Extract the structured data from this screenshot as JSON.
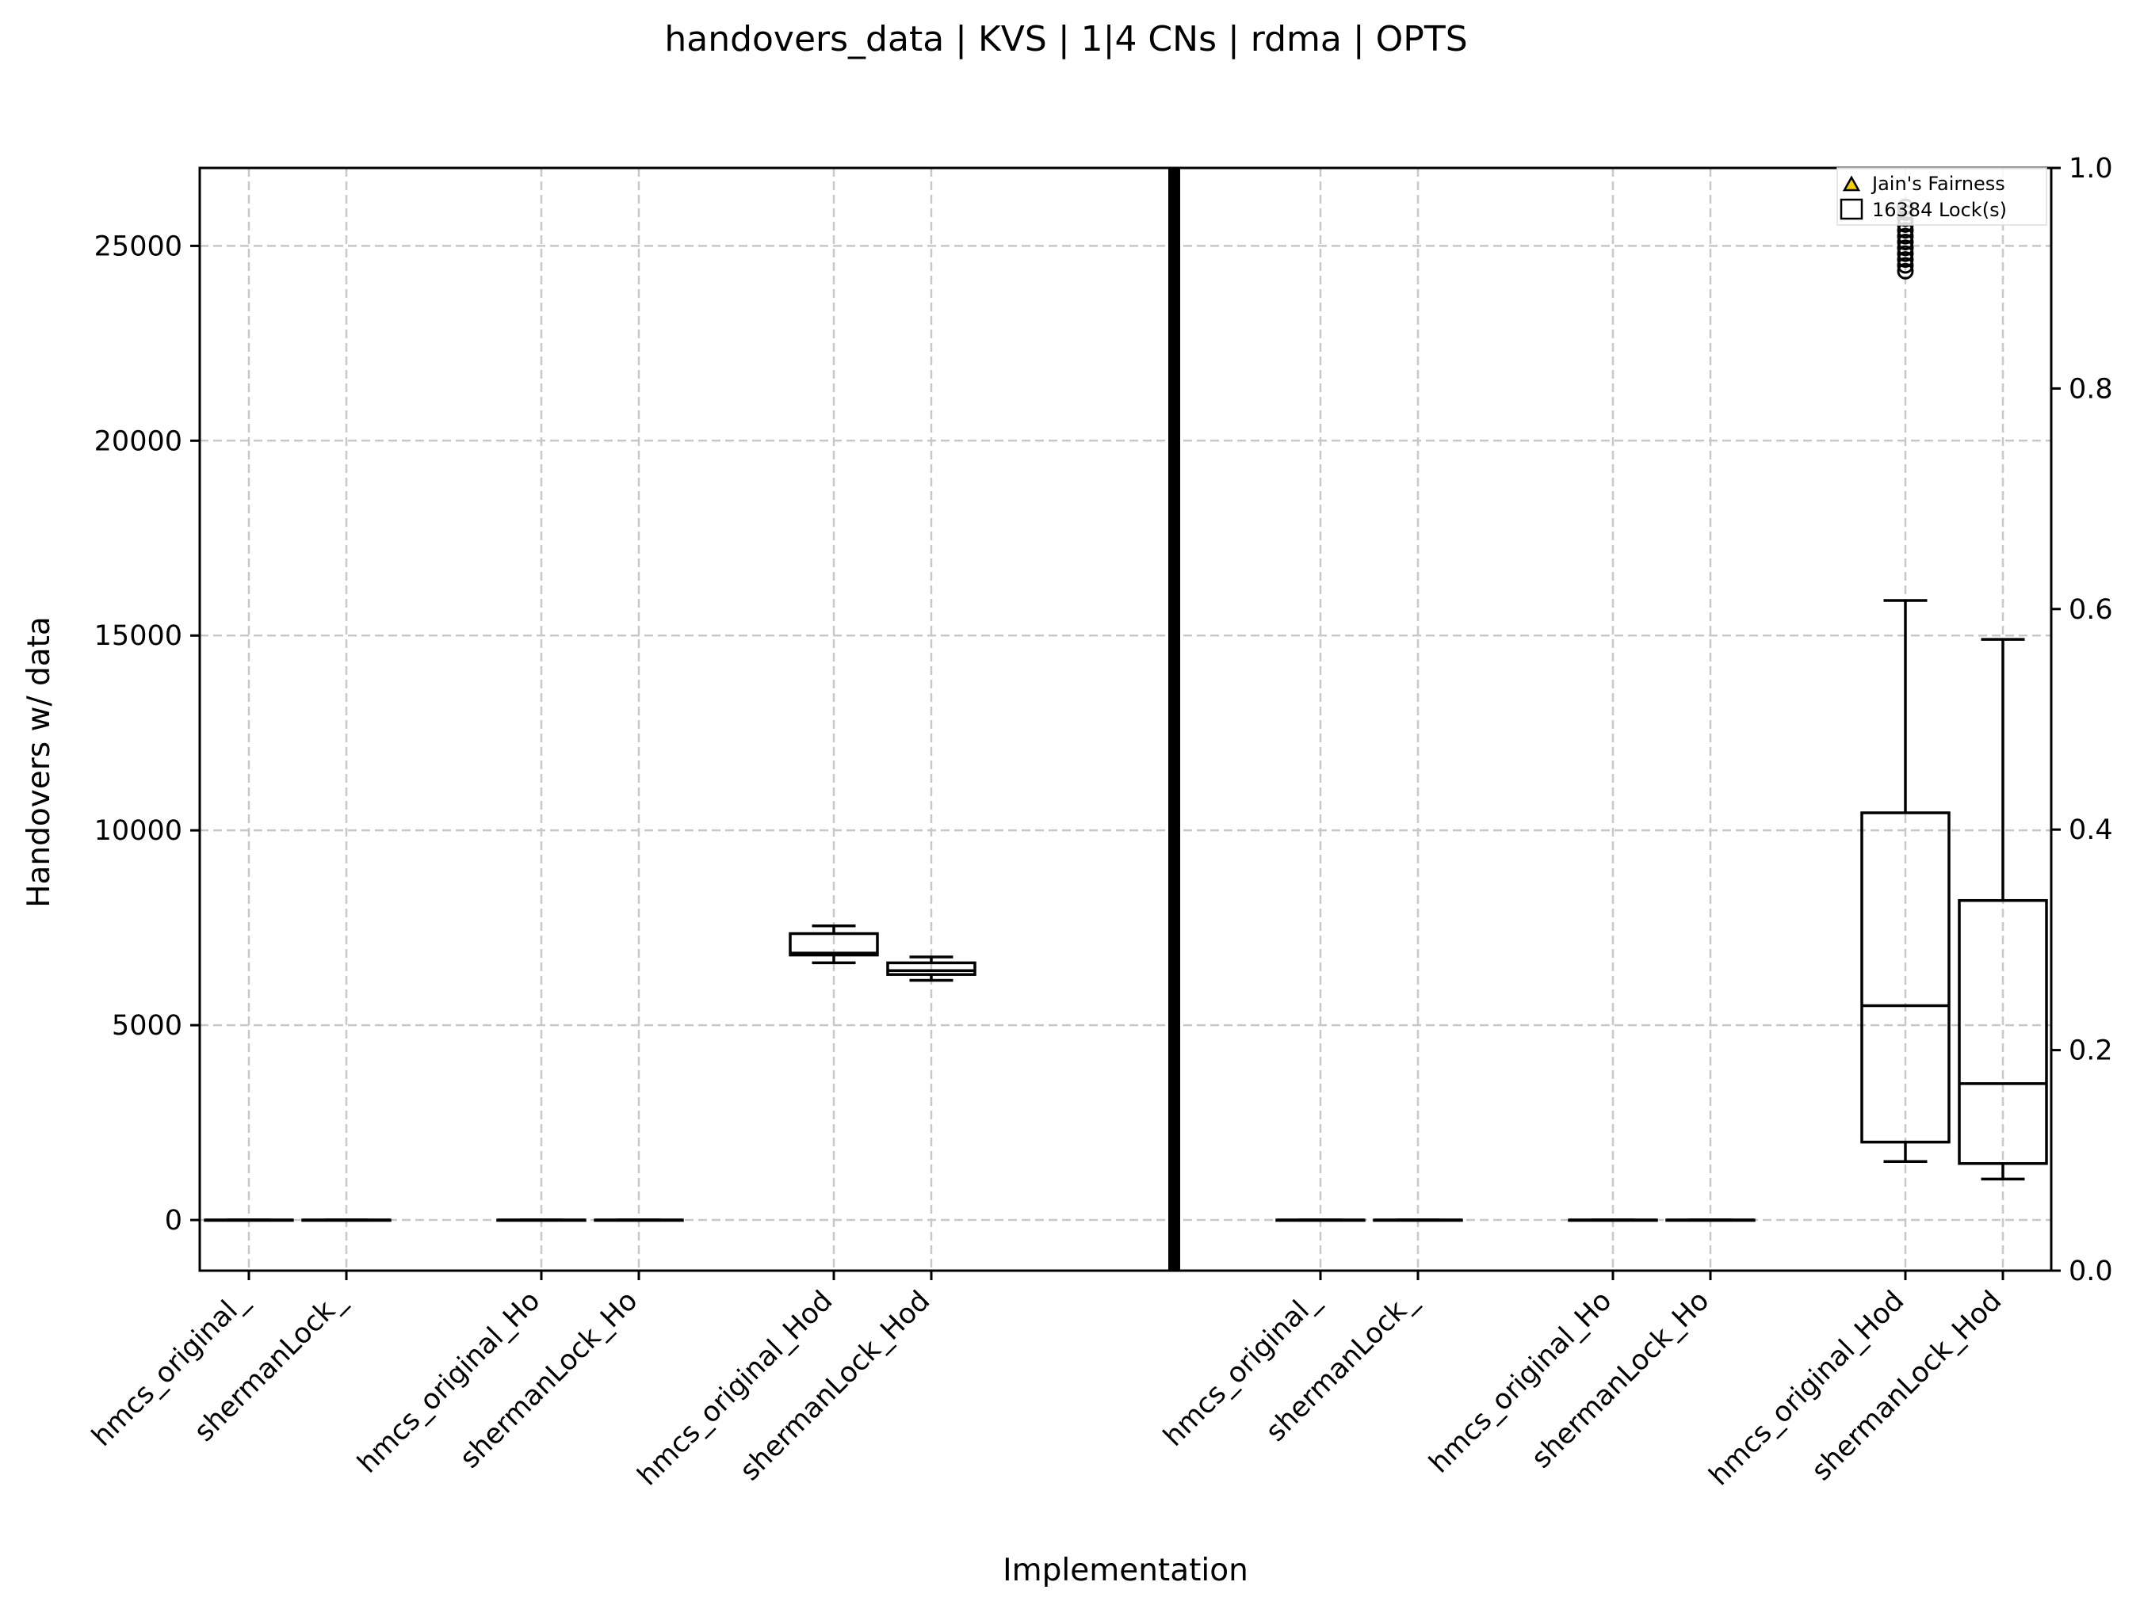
{
  "chart_data": {
    "type": "box",
    "title": "handovers_data | KVS | 1|4 CNs | rdma | OPTS",
    "xlabel": "Implementation",
    "ylabel": "Handovers w/ data",
    "ylim": [
      -1300,
      27000
    ],
    "y_ticks": [
      0,
      5000,
      10000,
      15000,
      20000,
      25000
    ],
    "y2lim": [
      0,
      1
    ],
    "y2_ticks": [
      "0.0",
      "0.2",
      "0.4",
      "0.6",
      "0.8",
      "1.0"
    ],
    "grid": true,
    "separator_after_index": 5,
    "legend": {
      "placement": "top-right",
      "entries": [
        {
          "label": "Jain's Fairness",
          "marker": "triangle",
          "color": "#f5d000"
        },
        {
          "label": "16384 Lock(s)",
          "marker": "square",
          "color": "#ffffff"
        }
      ]
    },
    "categories": [
      "hmcs_original_",
      "shermanLock_",
      "hmcs_original_Ho",
      "shermanLock_Ho",
      "hmcs_original_Hod",
      "shermanLock_Hod",
      "hmcs_original_",
      "shermanLock_",
      "hmcs_original_Ho",
      "shermanLock_Ho",
      "hmcs_original_Hod",
      "shermanLock_Hod"
    ],
    "boxes": [
      {
        "whislo": 0,
        "q1": 0,
        "med": 0,
        "q3": 0,
        "whishi": 0,
        "fliers": []
      },
      {
        "whislo": 0,
        "q1": 0,
        "med": 0,
        "q3": 0,
        "whishi": 0,
        "fliers": []
      },
      {
        "whislo": 0,
        "q1": 0,
        "med": 0,
        "q3": 0,
        "whishi": 0,
        "fliers": []
      },
      {
        "whislo": 0,
        "q1": 0,
        "med": 0,
        "q3": 0,
        "whishi": 0,
        "fliers": []
      },
      {
        "whislo": 6600,
        "q1": 6800,
        "med": 6850,
        "q3": 7350,
        "whishi": 7550,
        "fliers": []
      },
      {
        "whislo": 6150,
        "q1": 6300,
        "med": 6400,
        "q3": 6600,
        "whishi": 6750,
        "fliers": []
      },
      {
        "whislo": 0,
        "q1": 0,
        "med": 0,
        "q3": 0,
        "whishi": 0,
        "fliers": []
      },
      {
        "whislo": 0,
        "q1": 0,
        "med": 0,
        "q3": 0,
        "whishi": 0,
        "fliers": []
      },
      {
        "whislo": 0,
        "q1": 0,
        "med": 0,
        "q3": 0,
        "whishi": 0,
        "fliers": []
      },
      {
        "whislo": 0,
        "q1": 0,
        "med": 0,
        "q3": 0,
        "whishi": 0,
        "fliers": []
      },
      {
        "whislo": 1500,
        "q1": 2000,
        "med": 5500,
        "q3": 10450,
        "whishi": 15900,
        "fliers": [
          24350,
          24500,
          24650,
          24800,
          24950,
          25100,
          25250,
          25400,
          25550,
          25700,
          25850,
          26000
        ]
      },
      {
        "whislo": 1050,
        "q1": 1450,
        "med": 3500,
        "q3": 8200,
        "whishi": 14900,
        "fliers": []
      }
    ]
  }
}
